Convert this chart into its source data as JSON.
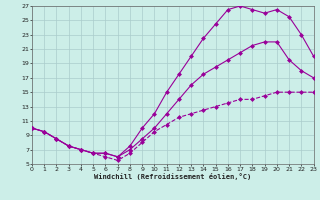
{
  "xlabel": "Windchill (Refroidissement éolien,°C)",
  "bg_color": "#cceee8",
  "grid_color": "#aacccc",
  "line_color": "#990099",
  "xlim": [
    0,
    23
  ],
  "ylim": [
    5,
    27
  ],
  "xticks": [
    0,
    1,
    2,
    3,
    4,
    5,
    6,
    7,
    8,
    9,
    10,
    11,
    12,
    13,
    14,
    15,
    16,
    17,
    18,
    19,
    20,
    21,
    22,
    23
  ],
  "yticks": [
    5,
    7,
    9,
    11,
    13,
    15,
    17,
    19,
    21,
    23,
    25,
    27
  ],
  "line1_x": [
    0,
    1,
    2,
    3,
    4,
    5,
    6,
    7,
    8,
    9,
    10,
    11,
    12,
    13,
    14,
    15,
    16,
    17,
    18,
    19,
    20,
    21,
    22,
    23
  ],
  "line1_y": [
    10,
    9.5,
    8.5,
    7.5,
    7.0,
    6.5,
    6.0,
    5.5,
    6.5,
    8.0,
    9.5,
    10.5,
    11.5,
    12.0,
    12.5,
    13.0,
    13.5,
    14.0,
    14.0,
    14.5,
    15.0,
    15.0,
    15.0,
    15.0
  ],
  "line2_x": [
    0,
    1,
    2,
    3,
    4,
    5,
    6,
    7,
    8,
    9,
    10,
    11,
    12,
    13,
    14,
    15,
    16,
    17,
    18,
    19,
    20,
    21,
    22,
    23
  ],
  "line2_y": [
    10,
    9.5,
    8.5,
    7.5,
    7.0,
    6.5,
    6.5,
    6.0,
    7.0,
    8.5,
    10.0,
    12.0,
    14.0,
    16.0,
    17.5,
    18.5,
    19.5,
    20.5,
    21.5,
    22.0,
    22.0,
    19.5,
    18.0,
    17.0
  ],
  "line3_x": [
    0,
    1,
    2,
    3,
    4,
    5,
    6,
    7,
    8,
    9,
    10,
    11,
    12,
    13,
    14,
    15,
    16,
    17,
    18,
    19,
    20,
    21,
    22,
    23
  ],
  "line3_y": [
    10,
    9.5,
    8.5,
    7.5,
    7.0,
    6.5,
    6.5,
    6.0,
    7.5,
    10.0,
    12.0,
    15.0,
    17.5,
    20.0,
    22.5,
    24.5,
    26.5,
    27.0,
    26.5,
    26.0,
    26.5,
    25.5,
    23.0,
    20.0
  ]
}
